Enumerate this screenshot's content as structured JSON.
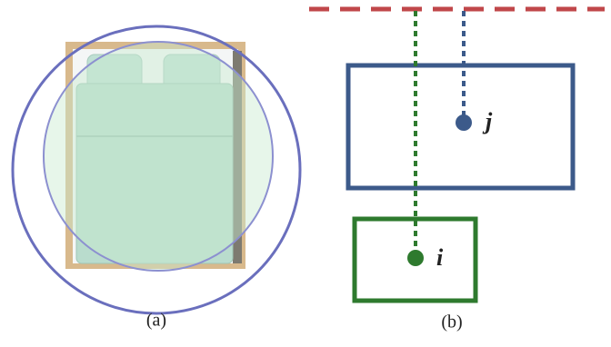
{
  "panels": [
    {
      "label": "(a)"
    },
    {
      "label": "(b)",
      "nodes": [
        {
          "label": "j"
        },
        {
          "label": "i"
        }
      ]
    }
  ]
}
